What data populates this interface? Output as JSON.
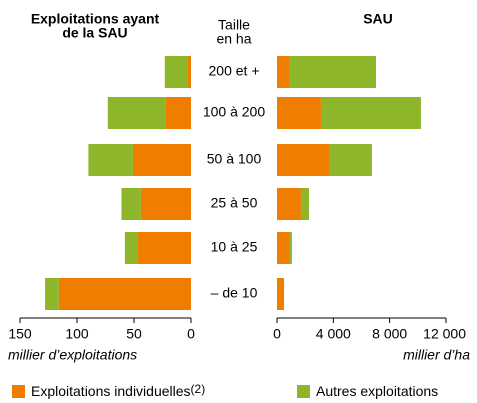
{
  "category_axis": {
    "title": [
      "Taille",
      "en ha"
    ],
    "categories": [
      "200 et +",
      "100 à 200",
      "50 à 100",
      "25 à 50",
      "10 à 25",
      "– de 10"
    ]
  },
  "legend_note": "(2)",
  "chart_data": [
    {
      "type": "bar",
      "orientation": "horizontal",
      "direction": "left",
      "stacked": true,
      "title": [
        "Exploitations ayant",
        "de la SAU"
      ],
      "xlabel": "millier d’exploitations",
      "xlim": [
        0,
        150
      ],
      "xticks": [
        150,
        100,
        50,
        0
      ],
      "series": [
        {
          "name": "Exploitations individuelles",
          "color": "#ee7d00",
          "values": [
            3,
            22,
            51,
            44,
            47,
            116
          ]
        },
        {
          "name": "Autres exploitations",
          "color": "#8db62b",
          "values": [
            20,
            51,
            39,
            17,
            11,
            12
          ]
        }
      ]
    },
    {
      "type": "bar",
      "orientation": "horizontal",
      "direction": "right",
      "stacked": true,
      "title": [
        "SAU"
      ],
      "xlabel": "millier d’ha",
      "xlim": [
        0,
        12000
      ],
      "xticks": [
        0,
        {
          "value": 4000,
          "label": "4 000"
        },
        {
          "value": 8000,
          "label": "8 000"
        },
        {
          "value": 12000,
          "label": "12 000"
        }
      ],
      "series": [
        {
          "color": "#ee7d00",
          "values": [
            850,
            3120,
            3690,
            1700,
            850,
            500
          ]
        },
        {
          "color": "#8db62b",
          "values": [
            6180,
            7100,
            3050,
            570,
            210,
            0
          ]
        }
      ]
    }
  ]
}
